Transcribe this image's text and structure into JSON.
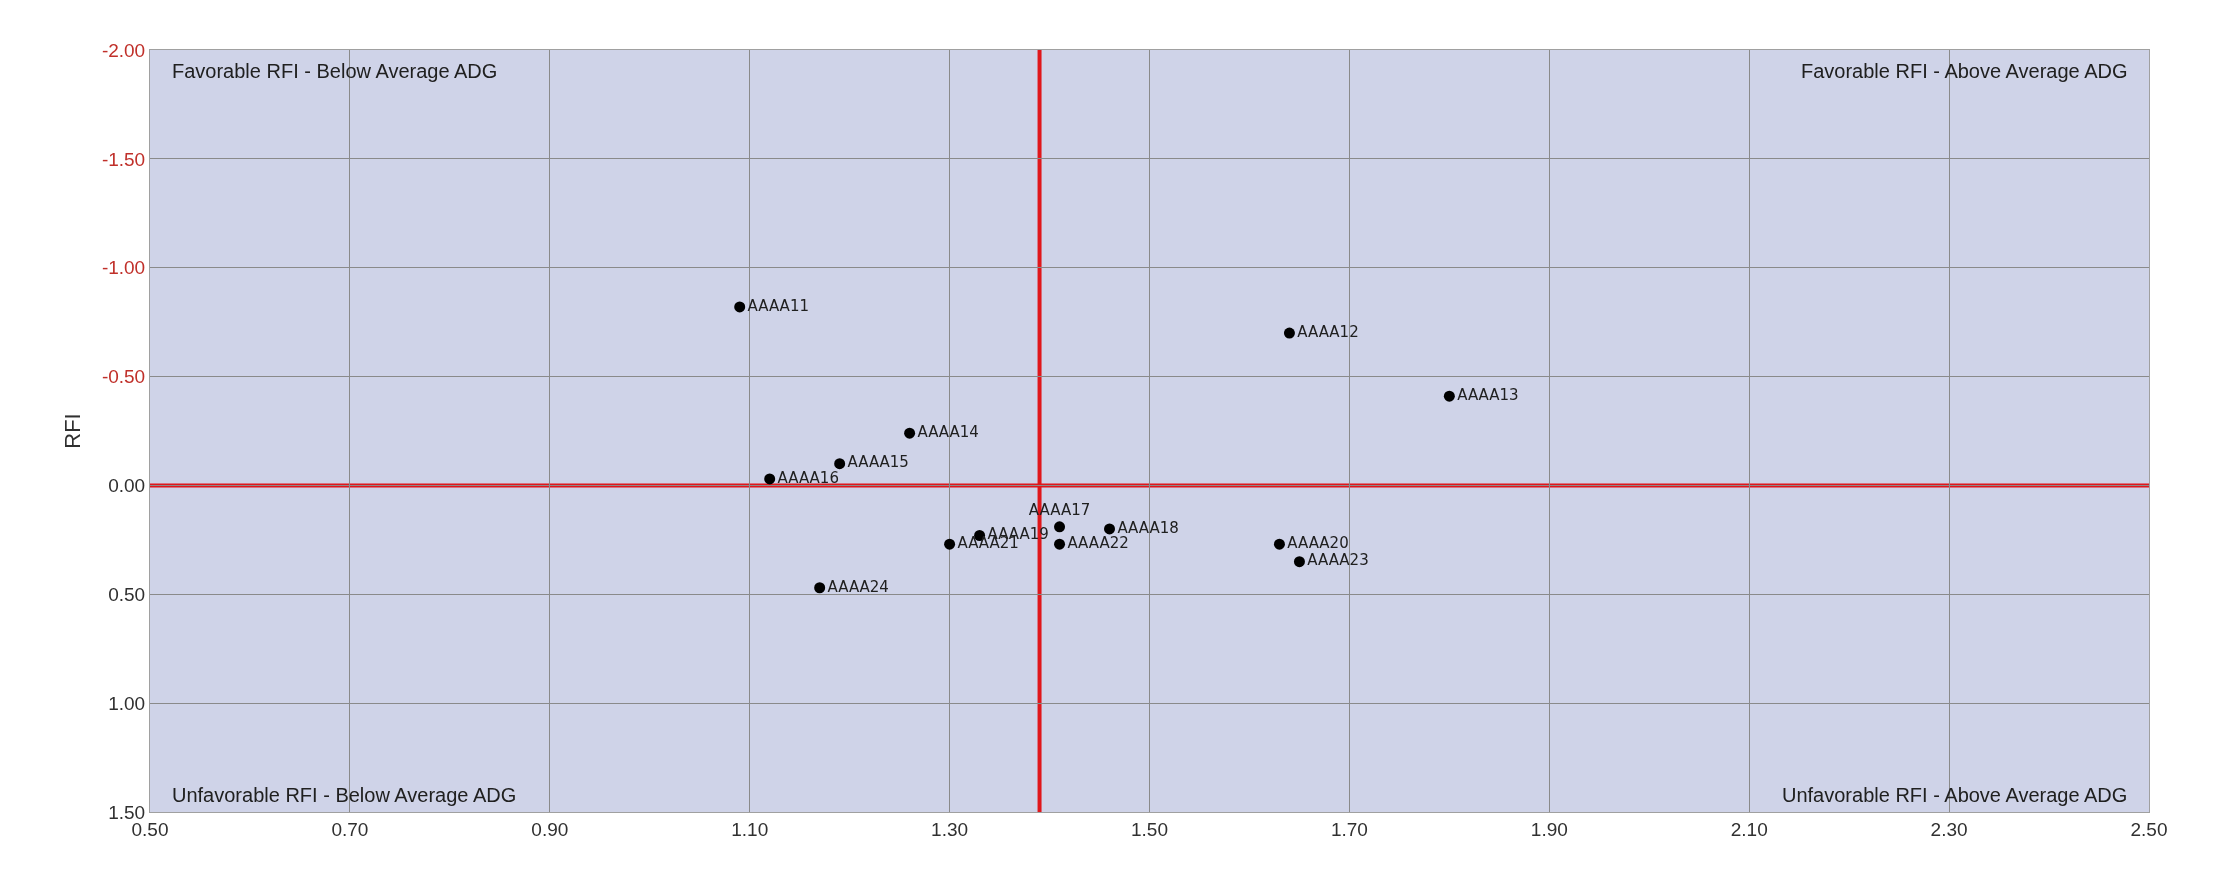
{
  "chart_data": {
    "type": "scatter",
    "ylabel": "RFI",
    "xlim": [
      0.5,
      2.5
    ],
    "xticks": [
      {
        "value": 0.5,
        "label": "0.50"
      },
      {
        "value": 0.7,
        "label": "0.70"
      },
      {
        "value": 0.9,
        "label": "0.90"
      },
      {
        "value": 1.1,
        "label": "1.10"
      },
      {
        "value": 1.3,
        "label": "1.30"
      },
      {
        "value": 1.5,
        "label": "1.50"
      },
      {
        "value": 1.7,
        "label": "1.70"
      },
      {
        "value": 1.9,
        "label": "1.90"
      },
      {
        "value": 2.1,
        "label": "2.10"
      },
      {
        "value": 2.3,
        "label": "2.30"
      },
      {
        "value": 2.5,
        "label": "2.50"
      }
    ],
    "ylim": [
      1.5,
      -2.0
    ],
    "yticks": [
      {
        "value": -2.0,
        "label": "-2.00"
      },
      {
        "value": -1.5,
        "label": "-1.50"
      },
      {
        "value": -1.0,
        "label": "-1.00"
      },
      {
        "value": -0.5,
        "label": "-0.50"
      },
      {
        "value": 0.0,
        "label": "0.00"
      },
      {
        "value": 0.5,
        "label": "0.50"
      },
      {
        "value": 1.0,
        "label": "1.00"
      },
      {
        "value": 1.5,
        "label": "1.50"
      }
    ],
    "grid": true,
    "legend": false,
    "marker": "circle",
    "series": [
      {
        "name": "AAAA11",
        "color": "#000000",
        "x": [
          1.09
        ],
        "values": [
          -0.82
        ]
      },
      {
        "name": "AAAA12",
        "color": "#000000",
        "x": [
          1.64
        ],
        "values": [
          -0.7
        ]
      },
      {
        "name": "AAAA13",
        "color": "#000000",
        "x": [
          1.8
        ],
        "values": [
          -0.41
        ]
      },
      {
        "name": "AAAA14",
        "color": "#000000",
        "x": [
          1.26
        ],
        "values": [
          -0.24
        ]
      },
      {
        "name": "AAAA15",
        "color": "#000000",
        "x": [
          1.19
        ],
        "values": [
          -0.1
        ]
      },
      {
        "name": "AAAA16",
        "color": "#000000",
        "x": [
          1.12
        ],
        "values": [
          -0.03
        ]
      },
      {
        "name": "AAAA17",
        "color": "#000000",
        "x": [
          1.41
        ],
        "values": [
          0.19
        ]
      },
      {
        "name": "AAAA18",
        "color": "#000000",
        "x": [
          1.46
        ],
        "values": [
          0.2
        ]
      },
      {
        "name": "AAAA19",
        "color": "#000000",
        "x": [
          1.33
        ],
        "values": [
          0.23
        ]
      },
      {
        "name": "AAAA20",
        "color": "#000000",
        "x": [
          1.63
        ],
        "values": [
          0.27
        ]
      },
      {
        "name": "AAAA21",
        "color": "#000000",
        "x": [
          1.3
        ],
        "values": [
          0.27
        ]
      },
      {
        "name": "AAAA22",
        "color": "#000000",
        "x": [
          1.41
        ],
        "values": [
          0.27
        ]
      },
      {
        "name": "AAAA23",
        "color": "#000000",
        "x": [
          1.65
        ],
        "values": [
          0.35
        ]
      },
      {
        "name": "AAAA24",
        "color": "#000000",
        "x": [
          1.17
        ],
        "values": [
          0.47
        ]
      }
    ],
    "ref_lines": [
      {
        "axis": "x",
        "value": 1.39,
        "color": "#e0161b"
      },
      {
        "axis": "y",
        "value": 0.0,
        "color": "#e0161b"
      }
    ],
    "annotations": [
      "Favorable RFI - Below Average ADG",
      "Favorable RFI - Above Average ADG",
      "Unfavorable RFI - Below Average ADG",
      "Unfavorable RFI - Above Average ADG"
    ]
  }
}
